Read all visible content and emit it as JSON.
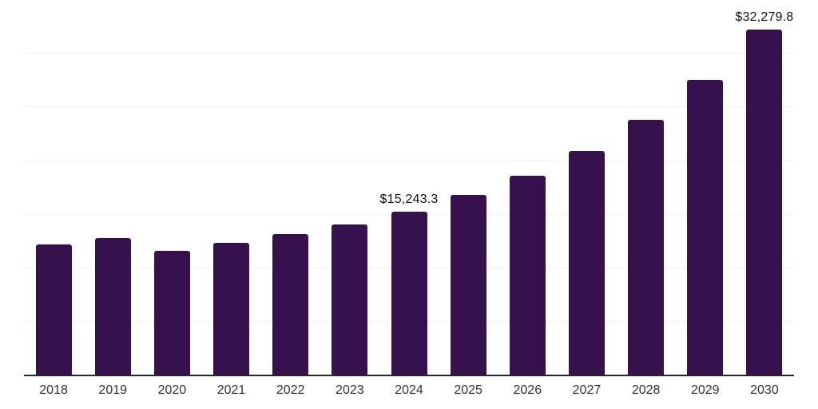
{
  "chart_data": {
    "type": "bar",
    "title": "",
    "xlabel": "",
    "ylabel": "",
    "categories": [
      "2018",
      "2019",
      "2020",
      "2021",
      "2022",
      "2023",
      "2024",
      "2025",
      "2026",
      "2027",
      "2028",
      "2029",
      "2030"
    ],
    "values": [
      12250,
      12800,
      11600,
      12350,
      13150,
      14100,
      15243.3,
      16800,
      18600,
      20900,
      23850,
      27550,
      32279.8
    ],
    "data_labels": [
      "",
      "",
      "",
      "",
      "",
      "",
      "$15,243.3",
      "",
      "",
      "",
      "",
      "",
      "$32,279.8"
    ],
    "ylim": [
      0,
      35000
    ],
    "gridline_step": 5000,
    "grid": "horizontal-only",
    "legend": "none",
    "y_tick_labels_visible": false,
    "colors": {
      "bar": "#36114e",
      "axis_line": "#262626",
      "gridline": "#f2f2f2",
      "tick_label": "#333333",
      "data_label": "#111111",
      "background": "#ffffff"
    }
  }
}
